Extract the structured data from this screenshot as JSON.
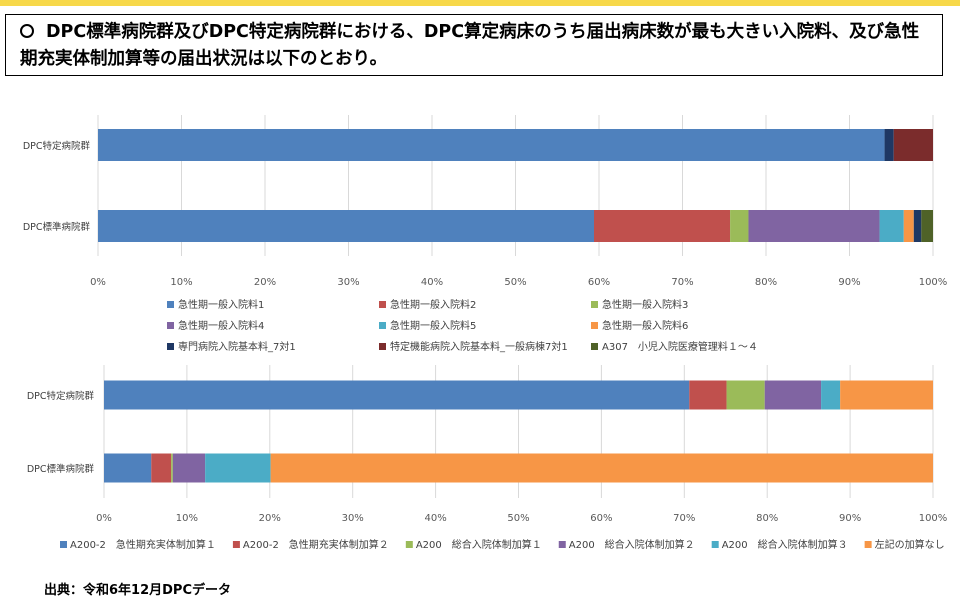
{
  "headline": "DPC標準病院群及びDPC特定病院群における、DPC算定病床のうち届出病床数が最も大きい入院料、及び急性期充実体制加算等の届出状況は以下のとおり。",
  "source": "出典：令和6年12月DPCデータ",
  "chart_data": [
    {
      "type": "bar",
      "orientation": "horizontal",
      "stacked": "percent",
      "categories": [
        "DPC特定病院群",
        "DPC標準病院群"
      ],
      "xlim": [
        0,
        100
      ],
      "ticks": [
        "0%",
        "10%",
        "20%",
        "30%",
        "40%",
        "50%",
        "60%",
        "70%",
        "80%",
        "90%",
        "100%"
      ],
      "legend_position": "bottom",
      "series": [
        {
          "name": "急性期一般入院料1",
          "color": "#4f81bd",
          "values": [
            94.2,
            59.4
          ]
        },
        {
          "name": "急性期一般入院料2",
          "color": "#c0504d",
          "values": [
            0,
            16.3
          ]
        },
        {
          "name": "急性期一般入院料3",
          "color": "#9bbb59",
          "values": [
            0,
            2.2
          ]
        },
        {
          "name": "急性期一般入院料4",
          "color": "#8064a2",
          "values": [
            0,
            15.7
          ]
        },
        {
          "name": "急性期一般入院料5",
          "color": "#4bacc6",
          "values": [
            0,
            2.9
          ]
        },
        {
          "name": "急性期一般入院料6",
          "color": "#f79646",
          "values": [
            0,
            1.2
          ]
        },
        {
          "name": "専門病院入院基本料_7対1",
          "color": "#1f3864",
          "values": [
            1.1,
            0.9
          ]
        },
        {
          "name": "特定機能病院入院基本料_一般病棟7対1",
          "color": "#7b2c2c",
          "values": [
            4.7,
            0
          ]
        },
        {
          "name": "A307　小児入院医療管理料１～４",
          "color": "#4f6228",
          "values": [
            0,
            1.4
          ]
        }
      ]
    },
    {
      "type": "bar",
      "orientation": "horizontal",
      "stacked": "percent",
      "categories": [
        "DPC特定病院群",
        "DPC標準病院群"
      ],
      "xlim": [
        0,
        100
      ],
      "ticks": [
        "0%",
        "10%",
        "20%",
        "30%",
        "40%",
        "50%",
        "60%",
        "70%",
        "80%",
        "90%",
        "100%"
      ],
      "legend_position": "bottom",
      "series": [
        {
          "name": "A200-2　急性期充実体制加算１",
          "color": "#4f81bd",
          "values": [
            70.6,
            5.7
          ]
        },
        {
          "name": "A200-2　急性期充実体制加算２",
          "color": "#c0504d",
          "values": [
            4.5,
            2.4
          ]
        },
        {
          "name": "A200　総合入院体制加算１",
          "color": "#9bbb59",
          "values": [
            4.6,
            0.2
          ]
        },
        {
          "name": "A200　総合入院体制加算２",
          "color": "#8064a2",
          "values": [
            6.8,
            3.9
          ]
        },
        {
          "name": "A200　総合入院体制加算３",
          "color": "#4bacc6",
          "values": [
            2.3,
            7.9
          ]
        },
        {
          "name": "左記の加算なし",
          "color": "#f79646",
          "values": [
            11.2,
            79.9
          ]
        }
      ]
    }
  ]
}
